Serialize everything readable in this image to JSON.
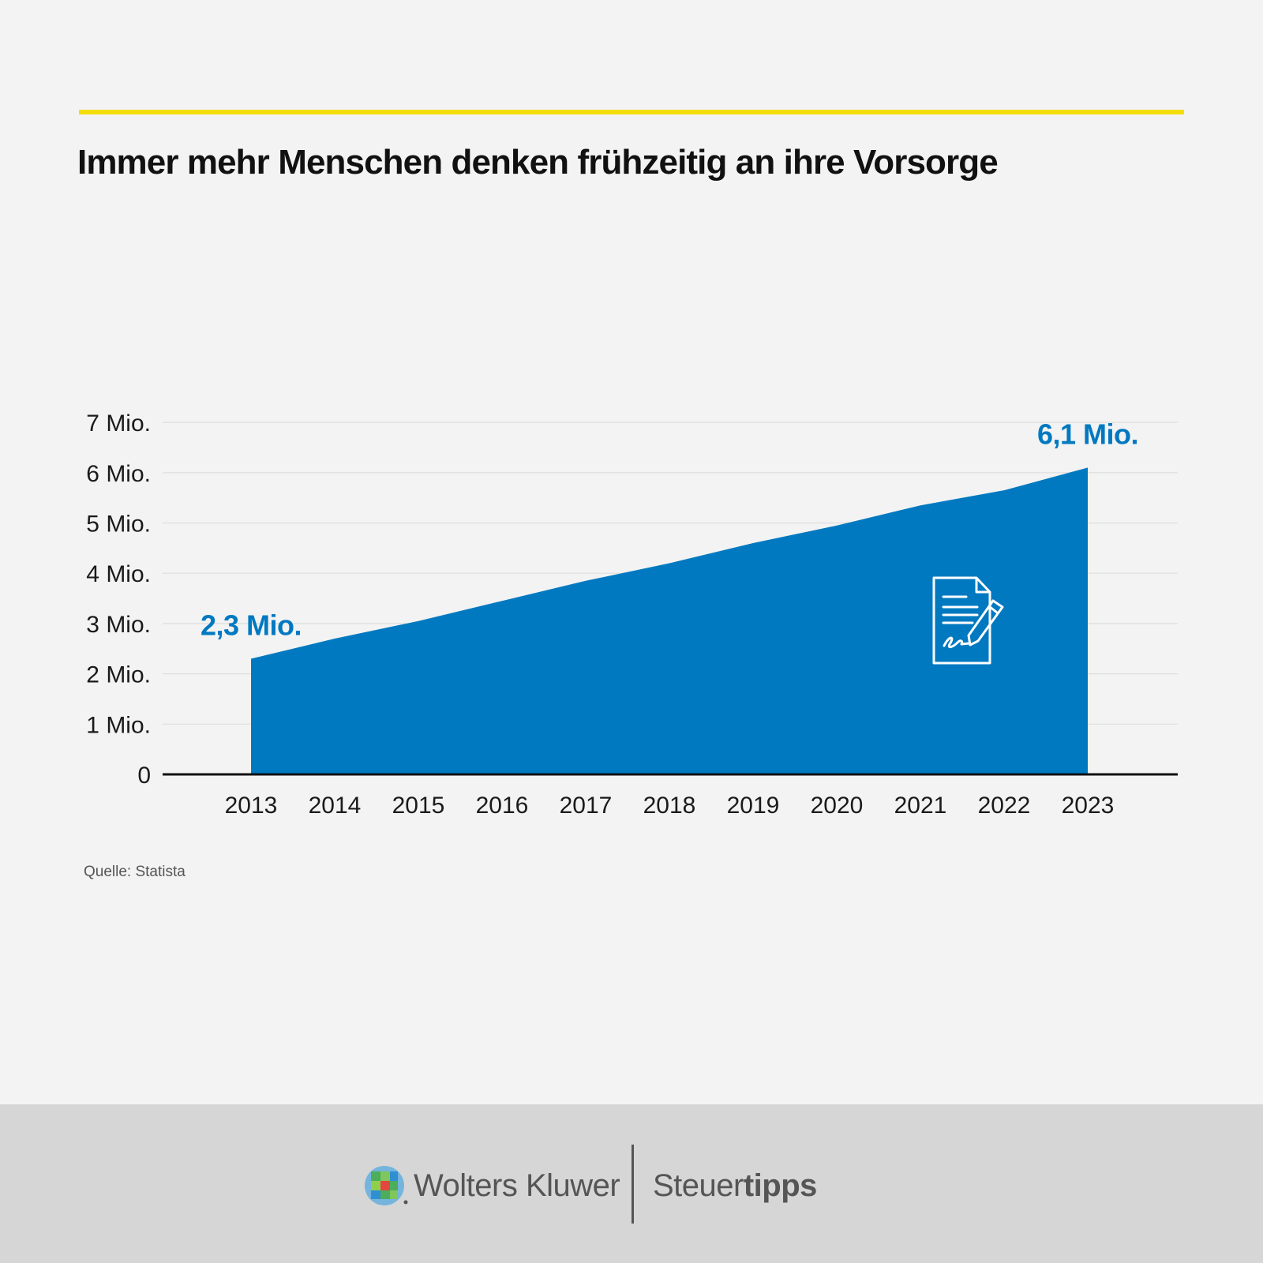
{
  "header": {
    "title": "Immer mehr Menschen denken frühzeitig an ihre Vorsorge"
  },
  "chart_data": {
    "type": "area",
    "title": "Immer mehr Menschen denken frühzeitig an ihre Vorsorge",
    "x": [
      "2013",
      "2014",
      "2015",
      "2016",
      "2017",
      "2018",
      "2019",
      "2020",
      "2021",
      "2022",
      "2023"
    ],
    "series": [
      {
        "values": [
          2.3,
          2.7,
          3.05,
          3.45,
          3.85,
          4.2,
          4.6,
          4.95,
          5.35,
          5.65,
          6.1
        ]
      }
    ],
    "y_ticks": [
      "0",
      "1 Mio.",
      "2 Mio.",
      "3 Mio.",
      "4 Mio.",
      "5 Mio.",
      "6 Mio.",
      "7 Mio."
    ],
    "ylim": [
      0,
      7
    ],
    "grid": true,
    "annotations": [
      {
        "x": "2013",
        "value": 2.3,
        "text": "2,3 Mio."
      },
      {
        "x": "2023",
        "value": 6.1,
        "text": "6,1 Mio."
      }
    ],
    "colors": {
      "area": "#0079c1",
      "label": "#0079c1",
      "axis": "#111111",
      "grid": "#dedede"
    },
    "icon": "signed-document-icon"
  },
  "source": "Quelle: Statista",
  "footer": {
    "brand_left": "Wolters Kluwer",
    "brand_right_light": "Steuer",
    "brand_right_bold": "tipps",
    "logo_icon": "wolters-kluwer-logo-icon"
  },
  "colors": {
    "background": "#f3f3f3",
    "accent": "#f5dd0a",
    "footer_background": "#d6d6d6",
    "footer_text": "#555555"
  }
}
